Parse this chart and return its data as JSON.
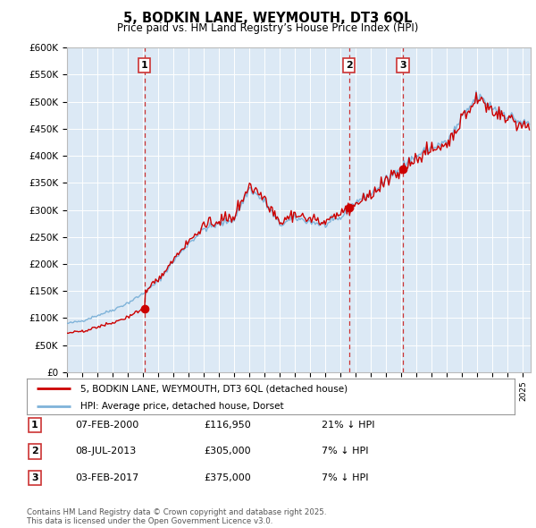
{
  "title": "5, BODKIN LANE, WEYMOUTH, DT3 6QL",
  "subtitle": "Price paid vs. HM Land Registry’s House Price Index (HPI)",
  "legend_line1": "5, BODKIN LANE, WEYMOUTH, DT3 6QL (detached house)",
  "legend_line2": "HPI: Average price, detached house, Dorset",
  "ylabel_ticks": [
    "£0",
    "£50K",
    "£100K",
    "£150K",
    "£200K",
    "£250K",
    "£300K",
    "£350K",
    "£400K",
    "£450K",
    "£500K",
    "£550K",
    "£600K"
  ],
  "ytick_values": [
    0,
    50000,
    100000,
    150000,
    200000,
    250000,
    300000,
    350000,
    400000,
    450000,
    500000,
    550000,
    600000
  ],
  "sale_points": [
    {
      "label": "1",
      "date": "07-FEB-2000",
      "price": 116950,
      "year": 2000.1,
      "hpi_pct": "21% ↓ HPI"
    },
    {
      "label": "2",
      "date": "08-JUL-2013",
      "price": 305000,
      "year": 2013.55,
      "hpi_pct": "7% ↓ HPI"
    },
    {
      "label": "3",
      "date": "03-FEB-2017",
      "price": 375000,
      "year": 2017.1,
      "hpi_pct": "7% ↓ HPI"
    }
  ],
  "line_color_red": "#cc0000",
  "line_color_blue": "#7fb3d9",
  "dashed_color": "#cc3333",
  "plot_bg": "#dce9f5",
  "footer_text": "Contains HM Land Registry data © Crown copyright and database right 2025.\nThis data is licensed under the Open Government Licence v3.0.",
  "xmin": 1995,
  "xmax": 2025.5,
  "ymin": 0,
  "ymax": 600000
}
